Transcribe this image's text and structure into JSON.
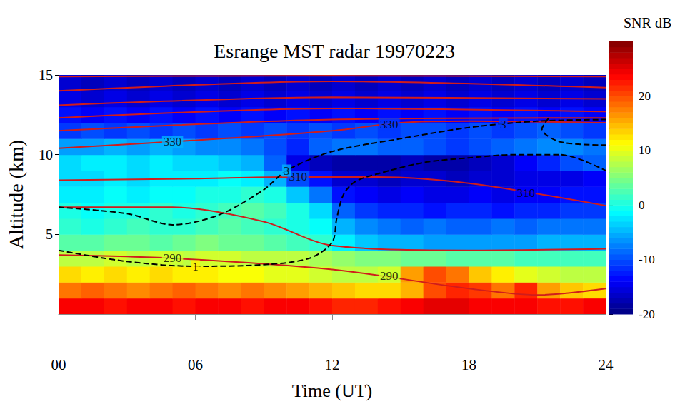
{
  "chart_data": {
    "type": "heatmap",
    "title": "Esrange MST radar 19970223",
    "x_label": "Time (UT)",
    "y_label": "Altitude (km)",
    "xlim": [
      0,
      24
    ],
    "xticks": [
      {
        "value": 0,
        "label": "00"
      },
      {
        "value": 6,
        "label": "06"
      },
      12,
      18,
      24
    ],
    "ylim": [
      0,
      15
    ],
    "yticks": [
      5,
      10,
      15
    ],
    "cells": {
      "x": [
        0.5,
        1.5,
        2.5,
        3.5,
        4.5,
        5.5,
        6.5,
        7.5,
        8.5,
        9.5,
        10.5,
        11.5,
        12.5,
        13.5,
        14.5,
        15.5,
        16.5,
        17.5,
        18.5,
        19.5,
        20.5,
        21.5,
        22.5,
        23.5
      ],
      "y": [
        0.5,
        1.5,
        2.5,
        3.5,
        4.5,
        5.5,
        6.5,
        7.5,
        8.5,
        9.5,
        10.5,
        11.5,
        12.5,
        13.5,
        14.5
      ],
      "values": [
        [
          24,
          24,
          23,
          24,
          24,
          23,
          24,
          24,
          23,
          24,
          24,
          23,
          22,
          22,
          23,
          24,
          25,
          25,
          24,
          24,
          24,
          23,
          23,
          24
        ],
        [
          18,
          19,
          18,
          17,
          18,
          19,
          18,
          17,
          18,
          17,
          16,
          15,
          14,
          13,
          13,
          15,
          20,
          22,
          21,
          18,
          22,
          16,
          14,
          13
        ],
        [
          13,
          12,
          13,
          12,
          13,
          12,
          12,
          11,
          11,
          10,
          10,
          9,
          8,
          8,
          9,
          16,
          20,
          18,
          14,
          12,
          10,
          9,
          8,
          8
        ],
        [
          8,
          8,
          9,
          8,
          9,
          8,
          9,
          9,
          8,
          8,
          8,
          7,
          6,
          5,
          5,
          4,
          4,
          3,
          3,
          3,
          2,
          2,
          2,
          2
        ],
        [
          3,
          3,
          4,
          4,
          3,
          4,
          5,
          4,
          4,
          3,
          2,
          1,
          -2,
          -4,
          -5,
          -5,
          -6,
          -6,
          -6,
          -6,
          -6,
          -5,
          -5,
          -5
        ],
        [
          1,
          0,
          1,
          2,
          1,
          1,
          2,
          3,
          2,
          1,
          0,
          -1,
          -5,
          -7,
          -8,
          -9,
          -8,
          -9,
          -9,
          -8,
          -9,
          -8,
          -8,
          -8
        ],
        [
          0,
          -1,
          0,
          0,
          1,
          0,
          1,
          2,
          3,
          2,
          0,
          -3,
          -9,
          -11,
          -12,
          -12,
          -13,
          -12,
          -12,
          -13,
          -12,
          -12,
          -11,
          -11
        ],
        [
          -2,
          -2,
          -1,
          -2,
          -1,
          -1,
          0,
          0,
          1,
          0,
          -4,
          -8,
          -13,
          -14,
          -15,
          -14,
          -15,
          -15,
          -14,
          -15,
          -14,
          -14,
          -13,
          -13
        ],
        [
          -3,
          -3,
          -2,
          -3,
          -2,
          -2,
          -2,
          -1,
          -2,
          -5,
          -10,
          -13,
          -16,
          -16,
          -17,
          -16,
          -16,
          -17,
          -16,
          -16,
          -15,
          -15,
          -15,
          -14
        ],
        [
          -3,
          -2,
          -2,
          -3,
          -2,
          -3,
          -3,
          -4,
          -5,
          -9,
          -15,
          -17,
          -18,
          -18,
          -18,
          -17,
          -18,
          -18,
          -17,
          -16,
          -14,
          -12,
          -10,
          -9
        ],
        [
          -6,
          -6,
          -5,
          -6,
          -5,
          -6,
          -7,
          -7,
          -8,
          -10,
          -12,
          -9,
          -8,
          -8,
          -9,
          -9,
          -10,
          -11,
          -10,
          -9,
          -8,
          -7,
          -7,
          -8
        ],
        [
          -11,
          -10,
          -11,
          -10,
          -11,
          -10,
          -11,
          -10,
          -11,
          -10,
          -11,
          -10,
          -11,
          -10,
          -11,
          -10,
          -10,
          -11,
          -10,
          -11,
          -10,
          -9,
          -10,
          -11
        ],
        [
          -13,
          -14,
          -13,
          -14,
          -13,
          -14,
          -13,
          -14,
          -13,
          -14,
          -13,
          -14,
          -13,
          -14,
          -13,
          -14,
          -13,
          -14,
          -13,
          -14,
          -13,
          -14,
          -13,
          -14
        ],
        [
          -15,
          -16,
          -15,
          -16,
          -15,
          -16,
          -15,
          -16,
          -15,
          -16,
          -15,
          -16,
          -15,
          -16,
          -15,
          -16,
          -15,
          -16,
          -15,
          -16,
          -15,
          -16,
          -15,
          -16
        ],
        [
          -16,
          -17,
          -16,
          -17,
          -16,
          -17,
          -16,
          -17,
          -16,
          -17,
          -16,
          -17,
          -16,
          -17,
          -16,
          -17,
          -16,
          -17,
          -16,
          -17,
          -16,
          -17,
          -16,
          -17
        ]
      ]
    },
    "colorbar": {
      "label": "SNR dB",
      "range": [
        -20,
        30
      ],
      "ticks": [
        -20,
        -10,
        0,
        10,
        20
      ]
    },
    "contours": [
      {
        "color": "#d01c1c",
        "line_style": "solid",
        "x": [
          0,
          5,
          12,
          18,
          21,
          24
        ],
        "y": [
          3.7,
          3.5,
          2.8,
          1.6,
          1.2,
          1.6
        ],
        "labels": [
          {
            "x": 5,
            "y": 3.5,
            "text": "290"
          },
          {
            "x": 14.5,
            "y": 2.4,
            "text": "290"
          }
        ]
      },
      {
        "color": "#d01c1c",
        "line_style": "solid",
        "x": [
          0,
          5,
          9,
          12,
          18,
          24
        ],
        "y": [
          6.7,
          6.7,
          5.8,
          4.3,
          4.0,
          4.1
        ],
        "labels": []
      },
      {
        "color": "#d01c1c",
        "line_style": "solid",
        "x": [
          0,
          6,
          10,
          14,
          18,
          24
        ],
        "y": [
          8.4,
          8.5,
          8.6,
          8.6,
          8.2,
          6.8
        ],
        "labels": [
          {
            "x": 10.5,
            "y": 8.6,
            "text": "310"
          },
          {
            "x": 20.5,
            "y": 7.6,
            "text": "310"
          }
        ]
      },
      {
        "color": "#d01c1c",
        "line_style": "solid",
        "x": [
          0,
          6,
          12,
          15,
          18,
          24
        ],
        "y": [
          10.4,
          10.9,
          11.5,
          12.0,
          12.1,
          12.0
        ],
        "labels": [
          {
            "x": 5,
            "y": 10.8,
            "text": "330"
          },
          {
            "x": 14.5,
            "y": 11.9,
            "text": "330"
          }
        ]
      },
      {
        "color": "#d01c1c",
        "line_style": "solid",
        "x": [
          0,
          12,
          24
        ],
        "y": [
          11.5,
          12.2,
          12.3
        ],
        "labels": []
      },
      {
        "color": "#d01c1c",
        "line_style": "solid",
        "x": [
          0,
          12,
          24
        ],
        "y": [
          12.3,
          12.9,
          12.7
        ],
        "labels": []
      },
      {
        "color": "#d01c1c",
        "line_style": "solid",
        "x": [
          0,
          12,
          24
        ],
        "y": [
          13.1,
          13.6,
          13.5
        ],
        "labels": []
      },
      {
        "color": "#d01c1c",
        "line_style": "solid",
        "x": [
          0,
          12,
          24
        ],
        "y": [
          14.0,
          14.6,
          14.2
        ],
        "labels": []
      },
      {
        "color": "#d01c1c",
        "line_style": "solid",
        "x": [
          0,
          12,
          24
        ],
        "y": [
          14.9,
          14.95,
          14.9
        ],
        "labels": []
      },
      {
        "color": "#000000",
        "line_style": "dashed",
        "x": [
          0,
          3,
          6,
          9,
          11,
          12,
          12.2,
          12.5,
          13,
          14,
          16,
          18,
          20,
          22,
          24
        ],
        "y": [
          4.0,
          3.3,
          3.0,
          3.1,
          3.5,
          4.5,
          6.0,
          7.5,
          8.3,
          8.8,
          9.5,
          9.8,
          10.0,
          10.0,
          9.0
        ],
        "labels": [
          {
            "x": 6,
            "y": 3.0,
            "text": "1"
          }
        ]
      },
      {
        "color": "#000000",
        "line_style": "dashed",
        "x": [
          0,
          3,
          5,
          7,
          9,
          10,
          12,
          15,
          18,
          21,
          24
        ],
        "y": [
          6.7,
          6.3,
          5.6,
          6.2,
          7.8,
          9.0,
          10.2,
          11.0,
          11.7,
          12.1,
          12.2
        ],
        "labels": [
          {
            "x": 10,
            "y": 9.0,
            "text": "3"
          },
          {
            "x": 19.5,
            "y": 11.9,
            "text": "3"
          }
        ]
      },
      {
        "color": "#000000",
        "line_style": "dashed",
        "x": [
          21.5,
          21.2,
          22,
          24
        ],
        "y": [
          12.3,
          11.6,
          10.8,
          10.6
        ],
        "labels": []
      }
    ]
  }
}
